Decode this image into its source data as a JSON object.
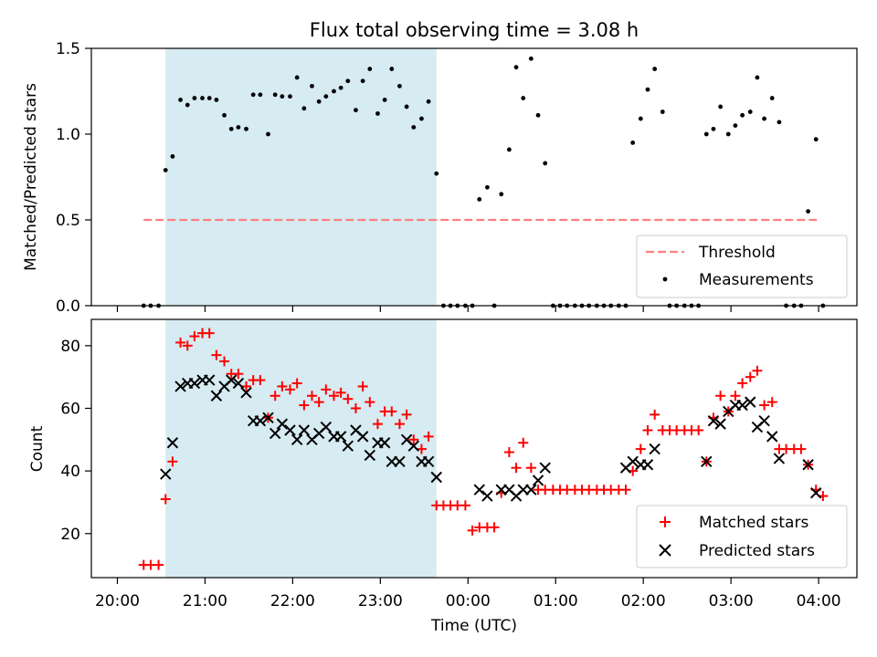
{
  "chart_data": {
    "title": "Flux total observing time = 3.08 h",
    "xlabel": "Time (UTC)",
    "xlim": [
      -0.2967,
      8.4367
    ],
    "xticks": [
      {
        "value": 0,
        "label": "20:00"
      },
      {
        "value": 1,
        "label": "21:00"
      },
      {
        "value": 2,
        "label": "22:00"
      },
      {
        "value": 3,
        "label": "23:00"
      },
      {
        "value": 4,
        "label": "00:00"
      },
      {
        "value": 5,
        "label": "01:00"
      },
      {
        "value": 6,
        "label": "02:00"
      },
      {
        "value": 7,
        "label": "03:00"
      },
      {
        "value": 8,
        "label": "04:00"
      }
    ],
    "x_unit_note": "hours since 20:00 UTC",
    "shaded_span": {
      "start": 0.55,
      "end": 3.64,
      "color": "#add8e6"
    },
    "panels": [
      {
        "type": "scatter",
        "ylabel": "Matched/Predicted stars",
        "ylim": [
          0,
          1.5
        ],
        "yticks": [
          0.0,
          0.5,
          1.0,
          1.5
        ],
        "ytick_labels": [
          "0.0",
          "0.5",
          "1.0",
          "1.5"
        ],
        "threshold": {
          "name": "Threshold",
          "value": 0.5,
          "x_start": 0.3,
          "x_end": 8.0,
          "color": "#ff7f7f"
        },
        "legend": {
          "loc": "lower right",
          "entries": [
            "Threshold",
            "Measurements"
          ]
        },
        "series": [
          {
            "name": "Measurements",
            "color": "#000000",
            "x": [
              0.3,
              0.38,
              0.47,
              0.55,
              0.63,
              0.72,
              0.8,
              0.88,
              0.97,
              1.05,
              1.13,
              1.22,
              1.3,
              1.38,
              1.47,
              1.55,
              1.63,
              1.72,
              1.8,
              1.88,
              1.97,
              2.05,
              2.13,
              2.22,
              2.3,
              2.38,
              2.47,
              2.55,
              2.63,
              2.72,
              2.8,
              2.88,
              2.97,
              3.05,
              3.13,
              3.22,
              3.3,
              3.38,
              3.47,
              3.55,
              3.64,
              3.72,
              3.8,
              3.88,
              3.97,
              4.05,
              4.13,
              4.22,
              4.3,
              4.38,
              4.47,
              4.55,
              4.63,
              4.72,
              4.8,
              4.88,
              4.97,
              5.05,
              5.13,
              5.22,
              5.3,
              5.38,
              5.47,
              5.55,
              5.63,
              5.72,
              5.8,
              5.88,
              5.97,
              6.05,
              6.13,
              6.22,
              6.3,
              6.38,
              6.47,
              6.55,
              6.63,
              6.72,
              6.8,
              6.88,
              6.97,
              7.05,
              7.13,
              7.22,
              7.3,
              7.38,
              7.47,
              7.55,
              7.63,
              7.72,
              7.8,
              7.88,
              7.97,
              8.05
            ],
            "y": [
              0,
              0,
              0,
              0.79,
              0.87,
              1.2,
              1.17,
              1.21,
              1.21,
              1.21,
              1.2,
              1.11,
              1.03,
              1.04,
              1.03,
              1.23,
              1.23,
              1.0,
              1.23,
              1.22,
              1.22,
              1.33,
              1.15,
              1.28,
              1.19,
              1.22,
              1.25,
              1.27,
              1.31,
              1.14,
              1.31,
              1.38,
              1.12,
              1.2,
              1.38,
              1.28,
              1.16,
              1.04,
              1.09,
              1.19,
              0.77,
              0,
              0,
              0,
              0,
              0,
              0.62,
              0.69,
              0,
              0.65,
              0.91,
              1.39,
              1.21,
              1.44,
              1.11,
              0.83,
              0,
              0,
              0,
              0,
              0,
              0,
              0,
              0,
              0,
              0,
              0,
              0.95,
              1.09,
              1.26,
              1.38,
              1.13,
              0,
              0,
              0,
              0,
              0,
              1.0,
              1.03,
              1.16,
              1.0,
              1.05,
              1.11,
              1.13,
              1.33,
              1.09,
              1.21,
              1.07,
              0,
              0,
              0,
              0.55,
              0.97,
              0
            ]
          }
        ]
      },
      {
        "type": "scatter",
        "ylabel": "Count",
        "ylim": [
          5.95,
          88.4
        ],
        "yticks": [
          20,
          40,
          60,
          80
        ],
        "ytick_labels": [
          "20",
          "40",
          "60",
          "80"
        ],
        "legend": {
          "loc": "lower right",
          "entries": [
            "Matched stars",
            "Predicted stars"
          ]
        },
        "series": [
          {
            "name": "Matched stars",
            "marker": "+",
            "color": "#ff0000",
            "x": [
              0.3,
              0.38,
              0.47,
              0.55,
              0.63,
              0.72,
              0.8,
              0.88,
              0.97,
              1.05,
              1.13,
              1.22,
              1.3,
              1.38,
              1.47,
              1.55,
              1.63,
              1.72,
              1.8,
              1.88,
              1.97,
              2.05,
              2.13,
              2.22,
              2.3,
              2.38,
              2.47,
              2.55,
              2.63,
              2.72,
              2.8,
              2.88,
              2.97,
              3.05,
              3.13,
              3.22,
              3.3,
              3.38,
              3.47,
              3.55,
              3.64,
              3.72,
              3.8,
              3.88,
              3.97,
              4.05,
              4.13,
              4.22,
              4.3,
              4.38,
              4.47,
              4.55,
              4.63,
              4.72,
              4.8,
              4.88,
              4.97,
              5.05,
              5.13,
              5.22,
              5.3,
              5.38,
              5.47,
              5.55,
              5.63,
              5.72,
              5.8,
              5.88,
              5.97,
              6.05,
              6.13,
              6.22,
              6.3,
              6.38,
              6.47,
              6.55,
              6.63,
              6.72,
              6.8,
              6.88,
              6.97,
              7.05,
              7.13,
              7.22,
              7.3,
              7.38,
              7.47,
              7.55,
              7.63,
              7.72,
              7.8,
              7.88,
              7.97,
              8.05
            ],
            "y": [
              10,
              10,
              10,
              31,
              43,
              81,
              80,
              83,
              84,
              84,
              77,
              75,
              71,
              71,
              67,
              69,
              69,
              57,
              64,
              67,
              66,
              68,
              61,
              64,
              62,
              66,
              64,
              65,
              63,
              60,
              67,
              62,
              55,
              59,
              59,
              55,
              58,
              50,
              47,
              51,
              29,
              29,
              29,
              29,
              29,
              21,
              22,
              22,
              22,
              33,
              46,
              41,
              49,
              41,
              34,
              34,
              34,
              34,
              34,
              34,
              34,
              34,
              34,
              34,
              34,
              34,
              34,
              40,
              47,
              53,
              58,
              53,
              53,
              53,
              53,
              53,
              53,
              43,
              57,
              64,
              59,
              64,
              68,
              70,
              72,
              61,
              62,
              47,
              47,
              47,
              47,
              42,
              34,
              32
            ]
          },
          {
            "name": "Predicted stars",
            "marker": "x",
            "color": "#000000",
            "x": [
              0.55,
              0.63,
              0.72,
              0.8,
              0.88,
              0.97,
              1.05,
              1.13,
              1.22,
              1.3,
              1.38,
              1.47,
              1.55,
              1.63,
              1.72,
              1.8,
              1.88,
              1.97,
              2.05,
              2.13,
              2.22,
              2.3,
              2.38,
              2.47,
              2.55,
              2.63,
              2.72,
              2.8,
              2.88,
              2.97,
              3.05,
              3.13,
              3.22,
              3.3,
              3.38,
              3.47,
              3.55,
              3.64,
              4.13,
              4.22,
              4.38,
              4.47,
              4.55,
              4.63,
              4.72,
              4.8,
              4.88,
              5.8,
              5.88,
              5.97,
              6.05,
              6.13,
              6.72,
              6.8,
              6.88,
              6.97,
              7.05,
              7.13,
              7.22,
              7.3,
              7.38,
              7.47,
              7.55,
              7.88,
              7.97
            ],
            "y": [
              39,
              49,
              67,
              68,
              68,
              69,
              69,
              64,
              67,
              69,
              68,
              65,
              56,
              56,
              57,
              52,
              55,
              53,
              50,
              53,
              50,
              52,
              54,
              51,
              51,
              48,
              53,
              51,
              45,
              49,
              49,
              43,
              43,
              50,
              48,
              43,
              43,
              38,
              34,
              32,
              34,
              34,
              32,
              34,
              34,
              37,
              41,
              41,
              43,
              42,
              42,
              47,
              43,
              56,
              55,
              59,
              61,
              61,
              62,
              54,
              56,
              51,
              44,
              42,
              33
            ]
          }
        ]
      }
    ]
  }
}
